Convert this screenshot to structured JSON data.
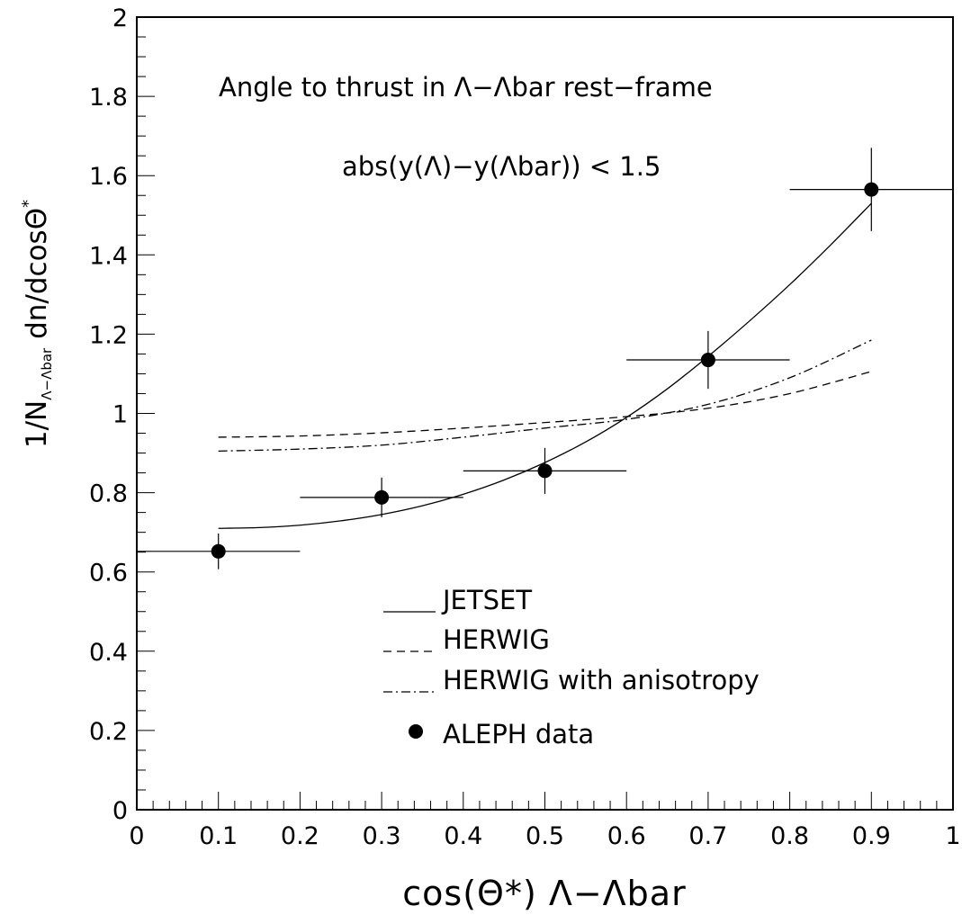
{
  "chart_data": {
    "type": "scatter",
    "xlabel": "cos(Θ*) Λ−Λbar",
    "ylabel": "1/N",
    "ylabel_sub": "Λ−Λbar",
    "ylabel_rest": " dn/dcosΘ",
    "ylabel_sup": "*",
    "annotations": [
      "Angle to thrust in Λ−Λbar rest−frame",
      "abs(y(Λ)−y(Λbar)) < 1.5"
    ],
    "xlim": [
      0,
      1
    ],
    "ylim": [
      0,
      2
    ],
    "x_ticks": [
      "0",
      "0.1",
      "0.2",
      "0.3",
      "0.4",
      "0.5",
      "0.6",
      "0.7",
      "0.8",
      "0.9",
      "1"
    ],
    "y_ticks": [
      "0",
      "0.2",
      "0.4",
      "0.6",
      "0.8",
      "1",
      "1.2",
      "1.4",
      "1.6",
      "1.8",
      "2"
    ],
    "grid": false,
    "legend_placement": "lower-center",
    "data_series": {
      "name": "ALEPH data",
      "x": [
        0.1,
        0.3,
        0.5,
        0.7,
        0.9
      ],
      "y": [
        0.652,
        0.788,
        0.855,
        1.135,
        1.565
      ],
      "x_err": [
        0.1,
        0.1,
        0.1,
        0.1,
        0.1
      ],
      "y_err": [
        0.045,
        0.05,
        0.058,
        0.073,
        0.105
      ]
    },
    "curves": [
      {
        "name": "JETSET",
        "style": "solid",
        "x": [
          0.1,
          0.15,
          0.2,
          0.25,
          0.3,
          0.35,
          0.4,
          0.45,
          0.5,
          0.55,
          0.6,
          0.65,
          0.7,
          0.75,
          0.8,
          0.85,
          0.9
        ],
        "y": [
          0.71,
          0.712,
          0.718,
          0.729,
          0.745,
          0.767,
          0.796,
          0.832,
          0.876,
          0.928,
          0.99,
          1.062,
          1.144,
          1.232,
          1.325,
          1.425,
          1.53
        ]
      },
      {
        "name": "HERWIG",
        "style": "dashed",
        "x": [
          0.1,
          0.2,
          0.3,
          0.4,
          0.5,
          0.6,
          0.7,
          0.8,
          0.9
        ],
        "y": [
          0.94,
          0.943,
          0.951,
          0.963,
          0.977,
          0.992,
          1.013,
          1.05,
          1.106
        ]
      },
      {
        "name": "HERWIG with anisotropy",
        "style": "dashdot",
        "x": [
          0.1,
          0.2,
          0.3,
          0.4,
          0.5,
          0.6,
          0.7,
          0.8,
          0.9
        ],
        "y": [
          0.905,
          0.91,
          0.92,
          0.94,
          0.963,
          0.985,
          1.023,
          1.09,
          1.185
        ]
      }
    ]
  }
}
